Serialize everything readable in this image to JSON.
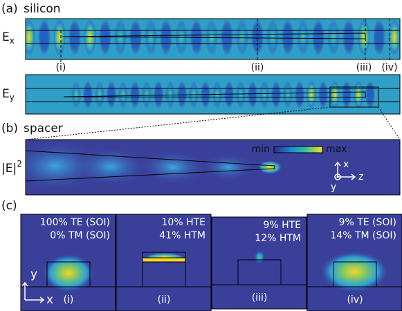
{
  "panel_a": {
    "label": "(a)",
    "title": "silicon",
    "ex_label": {
      "main": "E",
      "sub": "x"
    },
    "ey_label": {
      "main": "E",
      "sub": "y"
    },
    "markers": [
      "(i)",
      "(ii)",
      "(iii)",
      "(iv)"
    ]
  },
  "panel_b": {
    "label": "(b)",
    "title": "spacer",
    "colorbar": {
      "min": "min",
      "max": "max"
    },
    "field_label": {
      "main": "|E|",
      "sup": "2"
    },
    "axes": {
      "x": "x",
      "y": "y",
      "z": "z"
    }
  },
  "panel_c": {
    "label": "(c)",
    "modes": [
      {
        "line1": "100% TE (SOI)",
        "line2": "0% TM (SOI)",
        "tag": "(i)"
      },
      {
        "line1": "10% HTE",
        "line2": "41% HTM",
        "tag": "(ii)"
      },
      {
        "line1": "9% HTE",
        "line2": "12% HTM",
        "tag": "(iii)"
      },
      {
        "line1": "9% TE (SOI)",
        "line2": "14% TM (SOI)",
        "tag": "(iv)"
      }
    ],
    "axes": {
      "y": "y",
      "x": "x"
    }
  }
}
